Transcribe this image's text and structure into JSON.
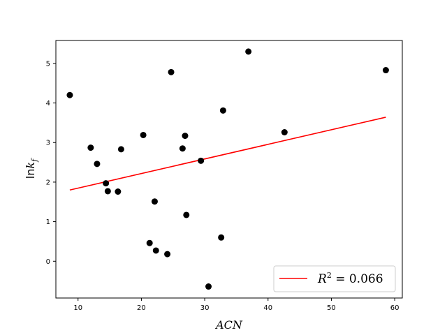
{
  "chart_data": {
    "type": "scatter",
    "xlabel": "ACN",
    "ylabel": "lnk_f",
    "ylabel_base": "ln",
    "ylabel_var": "k",
    "ylabel_sub": "f",
    "xlim": [
      6.5,
      61.2
    ],
    "ylim": [
      -0.93,
      5.58
    ],
    "xticks": [
      10,
      20,
      30,
      40,
      50,
      60
    ],
    "yticks": [
      0,
      1,
      2,
      3,
      4,
      5
    ],
    "grid": false,
    "legend_position": "bottom-right",
    "points": [
      {
        "x": 8.7,
        "y": 4.2
      },
      {
        "x": 12.0,
        "y": 2.87
      },
      {
        "x": 13.0,
        "y": 2.46
      },
      {
        "x": 14.4,
        "y": 1.97
      },
      {
        "x": 14.7,
        "y": 1.77
      },
      {
        "x": 16.3,
        "y": 1.76
      },
      {
        "x": 16.8,
        "y": 2.83
      },
      {
        "x": 20.3,
        "y": 3.19
      },
      {
        "x": 21.3,
        "y": 0.46
      },
      {
        "x": 22.1,
        "y": 1.51
      },
      {
        "x": 22.3,
        "y": 0.27
      },
      {
        "x": 24.1,
        "y": 0.18
      },
      {
        "x": 24.7,
        "y": 4.78
      },
      {
        "x": 26.5,
        "y": 2.85
      },
      {
        "x": 26.9,
        "y": 3.17
      },
      {
        "x": 27.1,
        "y": 1.17
      },
      {
        "x": 29.4,
        "y": 2.54
      },
      {
        "x": 30.6,
        "y": -0.64
      },
      {
        "x": 32.6,
        "y": 0.6
      },
      {
        "x": 32.9,
        "y": 3.81
      },
      {
        "x": 36.9,
        "y": 5.3
      },
      {
        "x": 42.6,
        "y": 3.26
      },
      {
        "x": 58.6,
        "y": 4.83
      }
    ],
    "fit_line": {
      "x": [
        8.7,
        58.6
      ],
      "y": [
        1.8,
        3.64
      ],
      "color": "#ff0000"
    },
    "legend": {
      "label": "R^2 = 0.066",
      "label_prefix": "R",
      "label_sup": "2",
      "label_suffix": " = 0.066"
    },
    "point_color": "#000000"
  }
}
